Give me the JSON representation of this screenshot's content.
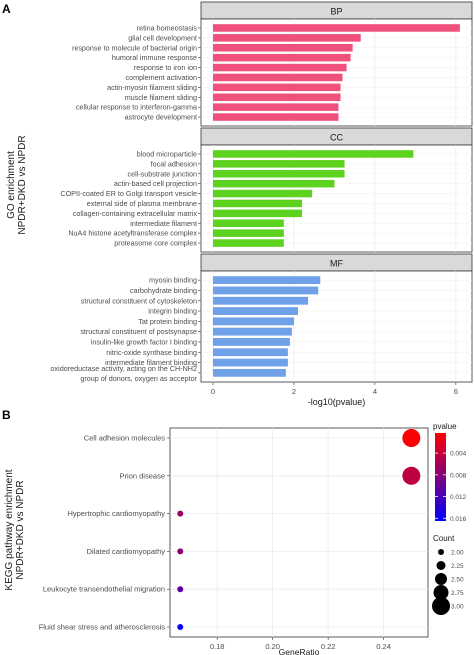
{
  "chart_data": [
    {
      "type": "bar",
      "panel_letter": "A",
      "ylabel_lines": [
        "GO enrichment",
        "NPDR+DKD vs NPDR"
      ],
      "xlabel": "-log10(pvalue)",
      "xlim": [
        0,
        6.3
      ],
      "xticks": [
        0,
        2,
        4,
        6
      ],
      "facets": [
        {
          "label": "BP",
          "color": "#f0517c",
          "categories": [
            "retina homeostasis",
            "glial cell development",
            "response to molecule of bacterial origin",
            "humoral immune response",
            "response to iron ion",
            "complement activation",
            "actin-myosin filament sliding",
            "muscle filament sliding",
            "cellular response to interferon-gamma",
            "astrocyte development"
          ],
          "values": [
            6.1,
            3.65,
            3.45,
            3.4,
            3.3,
            3.2,
            3.15,
            3.15,
            3.1,
            3.1
          ]
        },
        {
          "label": "CC",
          "color": "#5dd31f",
          "categories": [
            "blood microparticle",
            "focal adhesion",
            "cell-substrate junction",
            "actin-based cell projection",
            "COPII-coated ER to Golgi transport vesicle",
            "external side of plasma membrane",
            "collagen-containing extracellular matrix",
            "intermediate filament",
            "NuA4 histone acetyltransferase complex",
            "proteasome core complex"
          ],
          "values": [
            4.95,
            3.25,
            3.25,
            3.0,
            2.45,
            2.2,
            2.2,
            1.75,
            1.75,
            1.75
          ]
        },
        {
          "label": "MF",
          "color": "#6fa1e8",
          "categories": [
            "myosin binding",
            "carbohydrate binding",
            "structural constituent of cytoskeleton",
            "integrin binding",
            "Tat protein binding",
            "structural constituent of postsynapse",
            "insulin-like growth factor I binding",
            "nitric-oxide synthase binding",
            "intermediate filament binding",
            "oxidoreductase activity, acting on the CH-NH2 group of donors, oxygen as acceptor"
          ],
          "values": [
            2.65,
            2.6,
            2.35,
            2.1,
            2.0,
            1.95,
            1.9,
            1.85,
            1.85,
            1.8
          ]
        }
      ]
    },
    {
      "type": "scatter",
      "panel_letter": "B",
      "ylabel_lines": [
        "KEGG pathway enrichment",
        "NPDR+DKD vs NPDR"
      ],
      "xlabel": "GeneRatio",
      "xlim": [
        0.163,
        0.256
      ],
      "xticks": [
        "0.18",
        "0.20",
        "0.22",
        "0.24"
      ],
      "categories": [
        "Cell adhesion molecules",
        "Prion disease",
        "Hypertrophic cardiomyopathy",
        "Dilated cardiomyopathy",
        "Leukocyte transendothelial migration",
        "Fluid shear stress and atherosclerosis"
      ],
      "x": [
        0.25,
        0.25,
        0.1667,
        0.1667,
        0.1667,
        0.1667
      ],
      "count": [
        3,
        3,
        2,
        2,
        2,
        2
      ],
      "pvalue": [
        0.0005,
        0.0045,
        0.0065,
        0.0075,
        0.0105,
        0.016
      ],
      "legend": {
        "color_title": "pvalue",
        "color_ticks": [
          "0.004",
          "0.008",
          "0.012",
          "0.016"
        ],
        "color_range": [
          0.0003,
          0.0165
        ],
        "color_low": "#ff0000",
        "color_high": "#0000ff",
        "size_title": "Count",
        "size_ticks": [
          "2.00",
          "2.25",
          "2.50",
          "2.75",
          "3.00"
        ]
      }
    }
  ]
}
